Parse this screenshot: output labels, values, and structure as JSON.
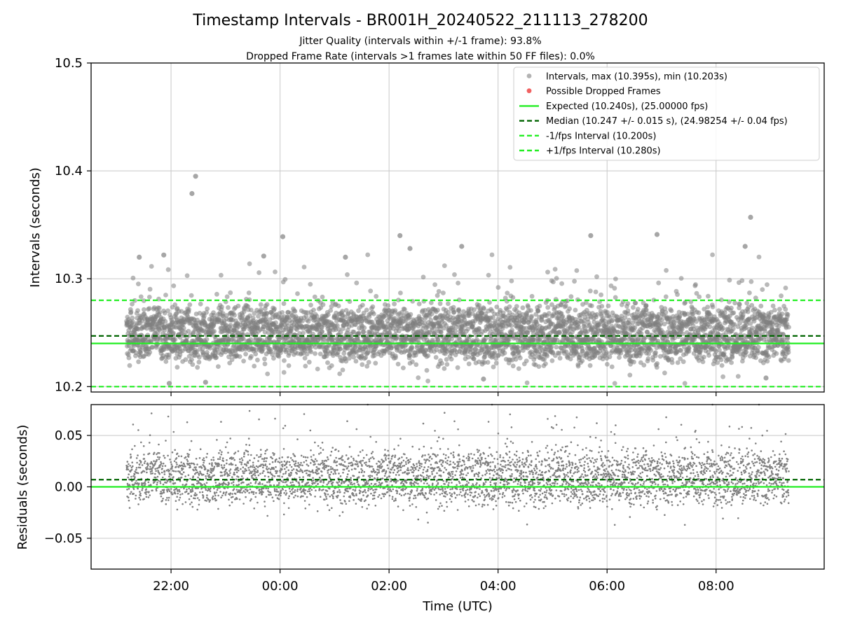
{
  "title": "Timestamp Intervals - BR001H_20240522_211113_278200",
  "subtitle_1": "Jitter Quality (intervals within +/-1 frame): 93.8%",
  "subtitle_2": "Dropped Frame Rate (intervals >1 frames late within 50 FF files): 0.0%",
  "colors": {
    "points": "#808080",
    "dropped": "#f05050",
    "expected": "#22ee22",
    "median": "#006400",
    "limits": "#22ee22",
    "grid": "#c8c8c8"
  },
  "chart_data": [
    {
      "type": "scatter",
      "ylabel": "Intervals (seconds)",
      "ylim": [
        10.195,
        10.5
      ],
      "yticks": [
        10.2,
        10.3,
        10.4,
        10.5
      ],
      "ytick_labels": [
        "10.2",
        "10.3",
        "10.4",
        "10.5"
      ],
      "xlim": [
        "2024-05-22 20:32",
        "2024-05-23 09:59"
      ],
      "grid": true,
      "legend_position": "top-right",
      "legend": [
        {
          "label": "Intervals, max (10.395s), min (10.203s)",
          "kind": "marker",
          "color": "#808080"
        },
        {
          "label": "Possible Dropped Frames",
          "kind": "marker",
          "color": "#f05050"
        },
        {
          "label": "Expected (10.240s), (25.00000 fps)",
          "kind": "solid",
          "color": "#22ee22"
        },
        {
          "label": "Median (10.247 +/- 0.015 s), (24.98254 +/- 0.04 fps)",
          "kind": "dashed",
          "color": "#006400"
        },
        {
          "label": "-1/fps Interval (10.200s)",
          "kind": "dashed",
          "color": "#22ee22"
        },
        {
          "label": "+1/fps Interval (10.280s)",
          "kind": "dashed",
          "color": "#22ee22"
        }
      ],
      "reference_lines": {
        "expected": 10.24,
        "median": 10.247,
        "lower_limit": 10.2,
        "upper_limit": 10.28
      },
      "series": [
        {
          "name": "Intervals",
          "x_start": "2024-05-22 21:11",
          "x_end": "2024-05-23 09:20",
          "count": 4270,
          "distribution": {
            "bands": [
              10.238,
              10.26
            ],
            "spread": 0.008,
            "max": 10.395,
            "min": 10.203
          },
          "outliers": [
            {
              "x": "2024-05-22 22:27",
              "y": 10.395
            },
            {
              "x": "2024-05-22 22:23",
              "y": 10.379
            },
            {
              "x": "2024-05-23 08:38",
              "y": 10.357
            },
            {
              "x": "2024-05-23 06:55",
              "y": 10.341
            },
            {
              "x": "2024-05-23 05:42",
              "y": 10.34
            },
            {
              "x": "2024-05-23 02:12",
              "y": 10.34
            },
            {
              "x": "2024-05-23 00:03",
              "y": 10.339
            },
            {
              "x": "2024-05-23 03:20",
              "y": 10.33
            },
            {
              "x": "2024-05-23 08:32",
              "y": 10.33
            },
            {
              "x": "2024-05-23 02:23",
              "y": 10.328
            },
            {
              "x": "2024-05-22 21:52",
              "y": 10.322
            },
            {
              "x": "2024-05-22 23:42",
              "y": 10.321
            },
            {
              "x": "2024-05-23 01:12",
              "y": 10.32
            },
            {
              "x": "2024-05-22 21:25",
              "y": 10.32
            },
            {
              "x": "2024-05-22 21:58",
              "y": 10.203
            },
            {
              "x": "2024-05-22 22:38",
              "y": 10.204
            },
            {
              "x": "2024-05-23 03:44",
              "y": 10.207
            },
            {
              "x": "2024-05-23 08:55",
              "y": 10.208
            }
          ]
        }
      ]
    },
    {
      "type": "scatter",
      "ylabel": "Residuals (seconds)",
      "xlabel": "Time (UTC)",
      "ylim": [
        -0.08,
        0.08
      ],
      "yticks": [
        -0.05,
        0.0,
        0.05
      ],
      "ytick_labels": [
        "−0.05",
        "0.00",
        "0.05"
      ],
      "xticks": [
        "2024-05-22 22:00",
        "2024-05-23 00:00",
        "2024-05-23 02:00",
        "2024-05-23 04:00",
        "2024-05-23 06:00",
        "2024-05-23 08:00"
      ],
      "xtick_labels": [
        "22:00",
        "00:00",
        "02:00",
        "04:00",
        "06:00",
        "08:00"
      ],
      "xlim": [
        "2024-05-22 20:32",
        "2024-05-23 09:59"
      ],
      "grid": true,
      "reference_lines": {
        "zero": 0.0,
        "median": 0.007
      },
      "series": [
        {
          "name": "Residuals",
          "x_start": "2024-05-22 21:11",
          "x_end": "2024-05-23 09:20",
          "count": 4270,
          "distribution": {
            "bands": [
              -0.002,
              0.02
            ],
            "spread": 0.008,
            "max": 0.08,
            "min": -0.037
          }
        }
      ]
    }
  ]
}
